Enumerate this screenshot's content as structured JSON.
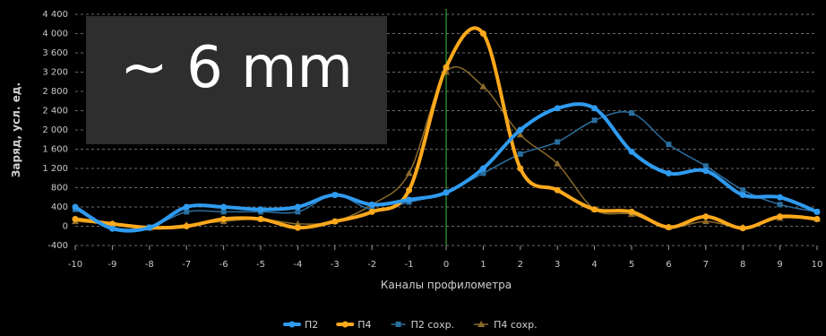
{
  "overlay_label": "~ 6 mm",
  "chart_data": {
    "type": "line",
    "xlabel": "Каналы профилометра",
    "ylabel": "Заряд, усл. ед.",
    "xlim": [
      -10,
      10
    ],
    "ylim": [
      -400,
      4400
    ],
    "x_ticks": [
      -10,
      -9,
      -8,
      -7,
      -6,
      -5,
      -4,
      -3,
      -2,
      -1,
      0,
      1,
      2,
      3,
      4,
      5,
      6,
      7,
      8,
      9,
      10
    ],
    "x_tick_labels": [
      "-10",
      "-9",
      "-8",
      "-7",
      "-6",
      "-5",
      "-4",
      "-3",
      "-2",
      "-1",
      "0",
      "1",
      "2",
      "3",
      "4",
      "5",
      "6",
      "7",
      "8",
      "9",
      "10"
    ],
    "y_ticks": [
      -400,
      0,
      400,
      800,
      1200,
      1600,
      2000,
      2400,
      2800,
      3200,
      3600,
      4000,
      4400
    ],
    "y_tick_labels": [
      "-400",
      "0",
      "400",
      "800",
      "1 200",
      "1 600",
      "2 000",
      "2 400",
      "2 800",
      "3 200",
      "3 600",
      "4 000",
      "4 400"
    ],
    "grid": true,
    "vertical_marker_x": 0,
    "legend_position": "bottom",
    "x": [
      -10,
      -9,
      -8,
      -7,
      -6,
      -5,
      -4,
      -3,
      -2,
      -1,
      0,
      1,
      2,
      3,
      4,
      5,
      6,
      7,
      8,
      9,
      10
    ],
    "series": [
      {
        "name": "П4 сохр.",
        "color": "#8a6a2a",
        "marker": "triangle",
        "width": 1.5,
        "values": [
          100,
          50,
          -30,
          30,
          100,
          150,
          50,
          100,
          450,
          1100,
          3200,
          2900,
          1900,
          1300,
          350,
          250,
          -20,
          100,
          -20,
          170,
          150
        ]
      },
      {
        "name": "П2 сохр.",
        "color": "#2a6e9e",
        "marker": "square",
        "width": 1.5,
        "values": [
          350,
          -20,
          -20,
          300,
          300,
          300,
          300,
          650,
          350,
          500,
          700,
          1100,
          1500,
          1750,
          2200,
          2350,
          1700,
          1250,
          750,
          450,
          300
        ]
      },
      {
        "name": "П4",
        "color": "#ffa91c",
        "marker": "circle",
        "width": 4,
        "values": [
          150,
          50,
          -30,
          0,
          150,
          150,
          -30,
          100,
          300,
          750,
          3300,
          4000,
          1200,
          750,
          350,
          300,
          -20,
          200,
          -40,
          200,
          150
        ]
      },
      {
        "name": "П2",
        "color": "#2f9bf0",
        "marker": "circle",
        "width": 4,
        "values": [
          400,
          -50,
          -30,
          400,
          400,
          350,
          400,
          650,
          450,
          550,
          700,
          1200,
          2000,
          2450,
          2450,
          1550,
          1100,
          1150,
          650,
          600,
          300
        ]
      }
    ],
    "legend_order": [
      "П2",
      "П4",
      "П2 сохр.",
      "П4 сохр."
    ]
  }
}
